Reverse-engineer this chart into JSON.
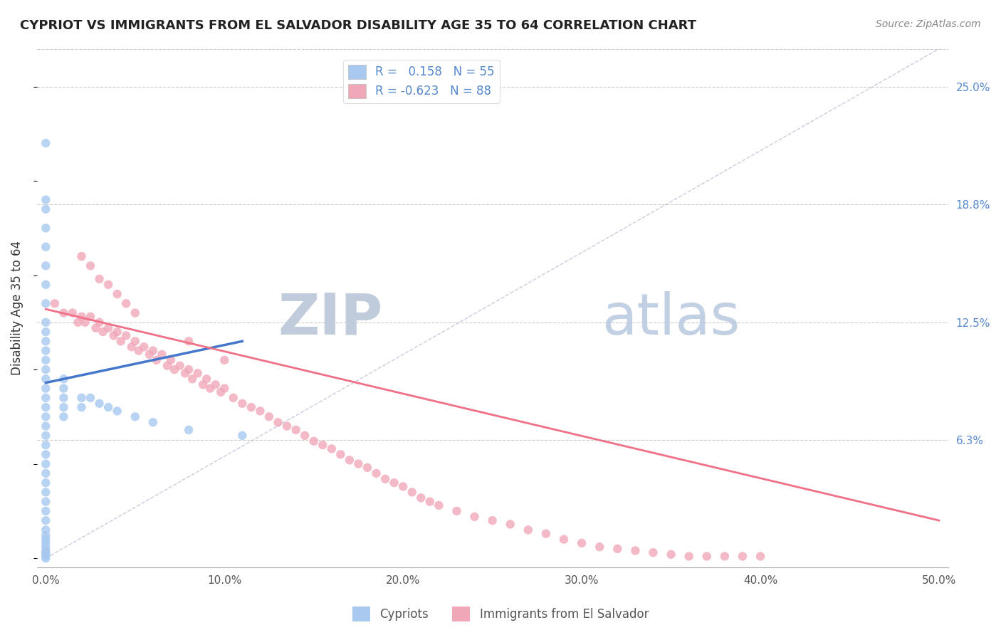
{
  "title": "CYPRIOT VS IMMIGRANTS FROM EL SALVADOR DISABILITY AGE 35 TO 64 CORRELATION CHART",
  "source": "Source: ZipAtlas.com",
  "xlabel": "",
  "ylabel": "Disability Age 35 to 64",
  "xlim": [
    -0.005,
    0.505
  ],
  "ylim": [
    -0.005,
    0.27
  ],
  "xticks": [
    0.0,
    0.1,
    0.2,
    0.3,
    0.4,
    0.5
  ],
  "xticklabels": [
    "0.0%",
    "10.0%",
    "20.0%",
    "30.0%",
    "40.0%",
    "50.0%"
  ],
  "yticks_right": [
    0.0625,
    0.125,
    0.1875,
    0.25
  ],
  "yticklabels_right": [
    "6.3%",
    "12.5%",
    "18.8%",
    "25.0%"
  ],
  "grid_color": "#cccccc",
  "background_color": "#ffffff",
  "watermark_zip": "ZIP",
  "watermark_atlas": "atlas",
  "watermark_color_zip": "#c8d4e8",
  "watermark_color_atlas": "#b8cce4",
  "cypriot_color": "#a8c8f0",
  "salvador_color": "#f0a8b8",
  "cypriot_line_color": "#4477cc",
  "salvador_line_color": "#f07088",
  "diagonal_color": "#b0b8d0",
  "R_cypriot": 0.158,
  "N_cypriot": 55,
  "R_salvador": -0.623,
  "N_salvador": 88,
  "cypriot_x": [
    0.0,
    0.0,
    0.0,
    0.0,
    0.0,
    0.0,
    0.0,
    0.0,
    0.0,
    0.0,
    0.0,
    0.0,
    0.0,
    0.0,
    0.0,
    0.0,
    0.0,
    0.0,
    0.0,
    0.0,
    0.0,
    0.0,
    0.0,
    0.0,
    0.0,
    0.0,
    0.0,
    0.0,
    0.0,
    0.0,
    0.0,
    0.0,
    0.0,
    0.0,
    0.0,
    0.0,
    0.0,
    0.0,
    0.0,
    0.0,
    0.01,
    0.01,
    0.01,
    0.01,
    0.01,
    0.02,
    0.02,
    0.025,
    0.03,
    0.035,
    0.04,
    0.05,
    0.06,
    0.08,
    0.11
  ],
  "cypriot_y": [
    0.22,
    0.19,
    0.185,
    0.175,
    0.165,
    0.155,
    0.145,
    0.135,
    0.125,
    0.12,
    0.115,
    0.11,
    0.105,
    0.1,
    0.095,
    0.09,
    0.085,
    0.08,
    0.075,
    0.07,
    0.065,
    0.06,
    0.055,
    0.05,
    0.045,
    0.04,
    0.035,
    0.03,
    0.025,
    0.02,
    0.015,
    0.012,
    0.01,
    0.008,
    0.006,
    0.004,
    0.003,
    0.002,
    0.001,
    0.0,
    0.095,
    0.09,
    0.085,
    0.08,
    0.075,
    0.085,
    0.08,
    0.085,
    0.082,
    0.08,
    0.078,
    0.075,
    0.072,
    0.068,
    0.065
  ],
  "salvador_x": [
    0.005,
    0.01,
    0.015,
    0.018,
    0.02,
    0.022,
    0.025,
    0.028,
    0.03,
    0.032,
    0.035,
    0.038,
    0.04,
    0.042,
    0.045,
    0.048,
    0.05,
    0.052,
    0.055,
    0.058,
    0.06,
    0.062,
    0.065,
    0.068,
    0.07,
    0.072,
    0.075,
    0.078,
    0.08,
    0.082,
    0.085,
    0.088,
    0.09,
    0.092,
    0.095,
    0.098,
    0.1,
    0.105,
    0.11,
    0.115,
    0.12,
    0.125,
    0.13,
    0.135,
    0.14,
    0.145,
    0.15,
    0.155,
    0.16,
    0.165,
    0.17,
    0.175,
    0.18,
    0.185,
    0.19,
    0.195,
    0.2,
    0.205,
    0.21,
    0.215,
    0.22,
    0.23,
    0.24,
    0.25,
    0.26,
    0.27,
    0.28,
    0.29,
    0.3,
    0.31,
    0.32,
    0.33,
    0.34,
    0.35,
    0.36,
    0.37,
    0.38,
    0.39,
    0.4,
    0.02,
    0.025,
    0.03,
    0.035,
    0.04,
    0.045,
    0.05,
    0.08,
    0.1
  ],
  "salvador_y": [
    0.135,
    0.13,
    0.13,
    0.125,
    0.128,
    0.125,
    0.128,
    0.122,
    0.125,
    0.12,
    0.122,
    0.118,
    0.12,
    0.115,
    0.118,
    0.112,
    0.115,
    0.11,
    0.112,
    0.108,
    0.11,
    0.105,
    0.108,
    0.102,
    0.105,
    0.1,
    0.102,
    0.098,
    0.1,
    0.095,
    0.098,
    0.092,
    0.095,
    0.09,
    0.092,
    0.088,
    0.09,
    0.085,
    0.082,
    0.08,
    0.078,
    0.075,
    0.072,
    0.07,
    0.068,
    0.065,
    0.062,
    0.06,
    0.058,
    0.055,
    0.052,
    0.05,
    0.048,
    0.045,
    0.042,
    0.04,
    0.038,
    0.035,
    0.032,
    0.03,
    0.028,
    0.025,
    0.022,
    0.02,
    0.018,
    0.015,
    0.013,
    0.01,
    0.008,
    0.006,
    0.005,
    0.004,
    0.003,
    0.002,
    0.001,
    0.001,
    0.001,
    0.001,
    0.001,
    0.16,
    0.155,
    0.148,
    0.145,
    0.14,
    0.135,
    0.13,
    0.115,
    0.105
  ],
  "cypriot_trend_x": [
    0.0,
    0.11
  ],
  "cypriot_trend_y": [
    0.093,
    0.115
  ],
  "salvador_trend_x": [
    0.0,
    0.5
  ],
  "salvador_trend_y": [
    0.132,
    0.02
  ]
}
